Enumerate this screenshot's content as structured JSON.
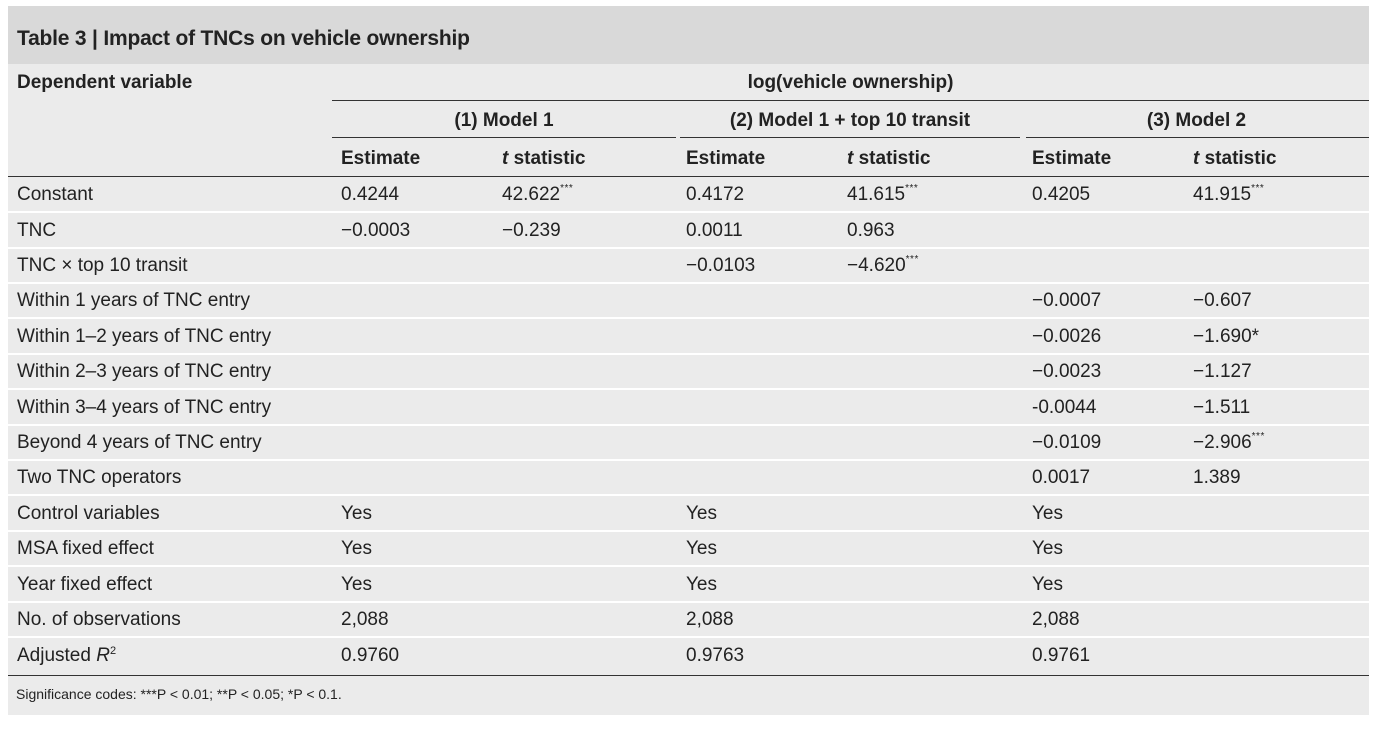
{
  "table": {
    "title": "Table 3 | Impact of TNCs on vehicle ownership",
    "header": {
      "dep_var_label": "Dependent variable",
      "dep_var": "log(vehicle ownership)",
      "models": [
        "(1) Model 1",
        "(2) Model 1 + top 10 transit",
        "(3) Model 2"
      ],
      "estimate_label": "Estimate",
      "t_label_italic": "t",
      "t_label_rest": " statistic"
    },
    "rows": [
      {
        "label": "Constant",
        "cells": [
          {
            "v": "0.4244"
          },
          {
            "v": "42.622",
            "s": "***"
          },
          {
            "v": "0.4172"
          },
          {
            "v": "41.615",
            "s": "***"
          },
          {
            "v": "0.4205"
          },
          {
            "v": "41.915",
            "s": "***"
          }
        ]
      },
      {
        "label": "TNC",
        "cells": [
          {
            "v": "−0.0003"
          },
          {
            "v": "−0.239"
          },
          {
            "v": "0.0011"
          },
          {
            "v": "0.963"
          },
          {
            "v": ""
          },
          {
            "v": ""
          }
        ]
      },
      {
        "label": "TNC × top 10 transit",
        "cells": [
          {
            "v": ""
          },
          {
            "v": ""
          },
          {
            "v": "−0.0103"
          },
          {
            "v": "−4.620",
            "s": "***"
          },
          {
            "v": ""
          },
          {
            "v": ""
          }
        ]
      },
      {
        "label": "Within 1 years of TNC entry",
        "cells": [
          {
            "v": ""
          },
          {
            "v": ""
          },
          {
            "v": ""
          },
          {
            "v": ""
          },
          {
            "v": "−0.0007"
          },
          {
            "v": "−0.607"
          }
        ]
      },
      {
        "label": "Within 1–2 years of TNC entry",
        "cells": [
          {
            "v": ""
          },
          {
            "v": ""
          },
          {
            "v": ""
          },
          {
            "v": ""
          },
          {
            "v": "−0.0026"
          },
          {
            "v": "−1.690*"
          }
        ]
      },
      {
        "label": "Within 2–3 years of TNC entry",
        "cells": [
          {
            "v": ""
          },
          {
            "v": ""
          },
          {
            "v": ""
          },
          {
            "v": ""
          },
          {
            "v": "−0.0023"
          },
          {
            "v": "−1.127"
          }
        ]
      },
      {
        "label": "Within 3–4 years of TNC entry",
        "cells": [
          {
            "v": ""
          },
          {
            "v": ""
          },
          {
            "v": ""
          },
          {
            "v": ""
          },
          {
            "v": "-0.0044"
          },
          {
            "v": "−1.511"
          }
        ]
      },
      {
        "label": "Beyond 4 years of TNC entry",
        "cells": [
          {
            "v": ""
          },
          {
            "v": ""
          },
          {
            "v": ""
          },
          {
            "v": ""
          },
          {
            "v": "−0.0109"
          },
          {
            "v": "−2.906",
            "s": "***"
          }
        ]
      },
      {
        "label": "Two TNC operators",
        "cells": [
          {
            "v": ""
          },
          {
            "v": ""
          },
          {
            "v": ""
          },
          {
            "v": ""
          },
          {
            "v": "0.0017"
          },
          {
            "v": "1.389"
          }
        ]
      },
      {
        "label": "Control variables",
        "cells": [
          {
            "v": "Yes"
          },
          {
            "v": ""
          },
          {
            "v": "Yes"
          },
          {
            "v": ""
          },
          {
            "v": "Yes"
          },
          {
            "v": ""
          }
        ]
      },
      {
        "label": "MSA fixed effect",
        "cells": [
          {
            "v": "Yes"
          },
          {
            "v": ""
          },
          {
            "v": "Yes"
          },
          {
            "v": ""
          },
          {
            "v": "Yes"
          },
          {
            "v": ""
          }
        ]
      },
      {
        "label": "Year fixed effect",
        "cells": [
          {
            "v": "Yes"
          },
          {
            "v": ""
          },
          {
            "v": "Yes"
          },
          {
            "v": ""
          },
          {
            "v": "Yes"
          },
          {
            "v": ""
          }
        ]
      },
      {
        "label": "No. of observations",
        "cells": [
          {
            "v": "2,088"
          },
          {
            "v": ""
          },
          {
            "v": "2,088"
          },
          {
            "v": ""
          },
          {
            "v": "2,088"
          },
          {
            "v": ""
          }
        ]
      },
      {
        "label": "Adjusted R",
        "sup": "2",
        "cells": [
          {
            "v": "0.9760"
          },
          {
            "v": ""
          },
          {
            "v": "0.9763"
          },
          {
            "v": ""
          },
          {
            "v": "0.9761"
          },
          {
            "v": ""
          }
        ]
      }
    ],
    "footnote": "Significance codes: ***P < 0.01; **P < 0.05; *P < 0.1."
  }
}
